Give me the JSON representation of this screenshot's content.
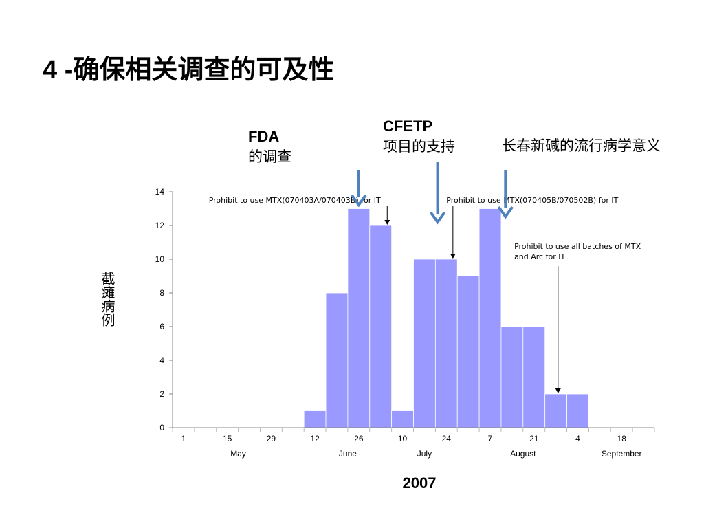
{
  "slide": {
    "title": "4 -确保相关调查的可及性",
    "year": "2007"
  },
  "callouts": {
    "fda": {
      "head": "FDA",
      "sub": "的调查"
    },
    "cfetp": {
      "head": "CFETP",
      "sub": "项目的支持"
    },
    "epi": {
      "text": "长春新碱的流行病学意义"
    }
  },
  "colors": {
    "bar": "#9999ff",
    "arrow": "#4f81bd"
  },
  "chart_data": {
    "type": "bar",
    "ylabel": "截瘫病例",
    "ylim": [
      0,
      14
    ],
    "yticks": [
      0,
      2,
      4,
      6,
      8,
      10,
      12,
      14
    ],
    "xtick_labels": [
      "1",
      "15",
      "29",
      "12",
      "26",
      "10",
      "24",
      "7",
      "21",
      "4",
      "18"
    ],
    "month_labels": [
      "May",
      "June",
      "July",
      "August",
      "September"
    ],
    "values": [
      0,
      0,
      0,
      0,
      0,
      0,
      1,
      8,
      13,
      12,
      1,
      10,
      10,
      9,
      13,
      6,
      6,
      2,
      2,
      0,
      0,
      0
    ],
    "annotations": [
      {
        "text": "Prohibit to use MTX(070403A/070403B) for IT",
        "at": 9
      },
      {
        "text": "Prohibit to use MTX(070405B/070502B) for IT",
        "at": 12
      },
      {
        "text": "Prohibit to use all batches of MTX and Arc for IT",
        "at": 17
      }
    ]
  }
}
